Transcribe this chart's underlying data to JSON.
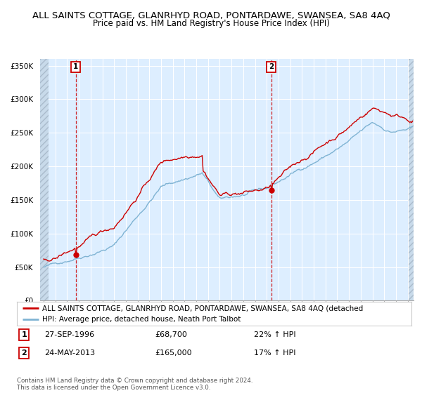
{
  "title1": "ALL SAINTS COTTAGE, GLANRHYD ROAD, PONTARDAWE, SWANSEA, SA8 4AQ",
  "title2": "Price paid vs. HM Land Registry's House Price Index (HPI)",
  "ylim": [
    0,
    360000
  ],
  "yticks": [
    0,
    50000,
    100000,
    150000,
    200000,
    250000,
    300000,
    350000
  ],
  "ytick_labels": [
    "£0",
    "£50K",
    "£100K",
    "£150K",
    "£200K",
    "£250K",
    "£300K",
    "£350K"
  ],
  "xlim_start": 1993.7,
  "xlim_end": 2025.5,
  "hatch_left_end": 1994.42,
  "hatch_right_start": 2025.08,
  "sale1_date": 1996.74,
  "sale1_price": 68700,
  "sale1_hpi_pct": "22%",
  "sale1_date_str": "27-SEP-1996",
  "sale2_date": 2013.39,
  "sale2_price": 165000,
  "sale2_hpi_pct": "17%",
  "sale2_date_str": "24-MAY-2013",
  "line_color_red": "#cc0000",
  "line_color_blue": "#7fb3d3",
  "bg_color": "#ddeeff",
  "hatch_bg": "#c8daea",
  "vline_color": "#cc0000",
  "legend_label_red": "ALL SAINTS COTTAGE, GLANRHYD ROAD, PONTARDAWE, SWANSEA, SA8 4AQ (detached",
  "legend_label_blue": "HPI: Average price, detached house, Neath Port Talbot",
  "footnote": "Contains HM Land Registry data © Crown copyright and database right 2024.\nThis data is licensed under the Open Government Licence v3.0.",
  "title_fontsize": 9.5,
  "subtitle_fontsize": 8.5,
  "tick_fontsize": 7.5,
  "legend_fontsize": 7.5,
  "table_fontsize": 8
}
